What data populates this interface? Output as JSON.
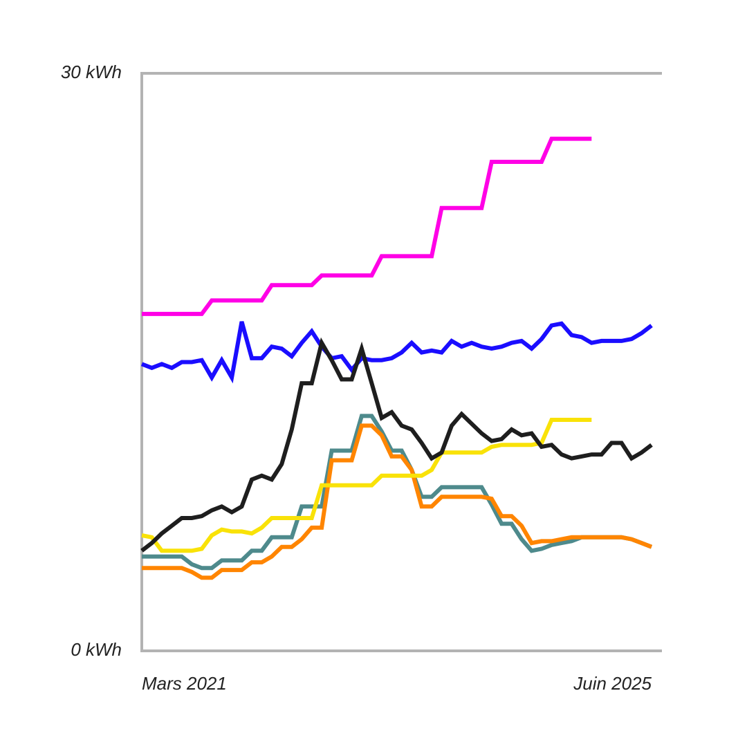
{
  "chart_data": {
    "type": "line",
    "categories": [
      "Mars 2021",
      null,
      null,
      null,
      null,
      null,
      null,
      null,
      null,
      null,
      null,
      null,
      null,
      null,
      null,
      null,
      null,
      null,
      null,
      null,
      null,
      null,
      null,
      null,
      null,
      null,
      null,
      null,
      null,
      null,
      null,
      null,
      null,
      null,
      null,
      null,
      null,
      null,
      null,
      null,
      null,
      null,
      null,
      null,
      null,
      null,
      null,
      null,
      null,
      null,
      null,
      "Juin 2025"
    ],
    "ylim": [
      0,
      30
    ],
    "yticks": [
      {
        "value": 0,
        "label": "0 kWh"
      },
      {
        "value": 30,
        "label": "30 kWh"
      }
    ],
    "grid": true,
    "series": [
      {
        "color": "#ff00e6",
        "values": [
          17.5,
          17.5,
          17.5,
          17.5,
          17.5,
          17.5,
          17.5,
          18.2,
          18.2,
          18.2,
          18.2,
          18.2,
          18.2,
          19.0,
          19.0,
          19.0,
          19.0,
          19.0,
          19.5,
          19.5,
          19.5,
          19.5,
          19.5,
          19.5,
          20.5,
          20.5,
          20.5,
          20.5,
          20.5,
          20.5,
          23.0,
          23.0,
          23.0,
          23.0,
          23.0,
          25.4,
          25.4,
          25.4,
          25.4,
          25.4,
          25.4,
          26.6,
          26.6,
          26.6,
          26.6,
          26.6,
          null,
          null,
          null,
          null,
          null,
          null
        ]
      },
      {
        "color": "#1a0dff",
        "values": [
          14.9,
          14.7,
          14.9,
          14.7,
          15.0,
          15.0,
          15.1,
          14.2,
          15.1,
          14.2,
          17.1,
          15.2,
          15.2,
          15.8,
          15.7,
          15.3,
          16.0,
          16.6,
          15.8,
          15.2,
          15.3,
          14.6,
          15.2,
          15.1,
          15.1,
          15.2,
          15.5,
          16.0,
          15.5,
          15.6,
          15.5,
          16.1,
          15.8,
          16.0,
          15.8,
          15.7,
          15.8,
          16.0,
          16.1,
          15.7,
          16.2,
          16.9,
          17.0,
          16.4,
          16.3,
          16.0,
          16.1,
          16.1,
          16.1,
          16.2,
          16.5,
          16.9
        ]
      },
      {
        "color": "#4e8a8c",
        "values": [
          4.9,
          4.9,
          4.9,
          4.9,
          4.9,
          4.5,
          4.3,
          4.3,
          4.7,
          4.7,
          4.7,
          5.2,
          5.2,
          5.9,
          5.9,
          5.9,
          7.5,
          7.5,
          7.5,
          10.4,
          10.4,
          10.4,
          12.2,
          12.2,
          11.4,
          10.4,
          10.4,
          9.4,
          8.0,
          8.0,
          8.5,
          8.5,
          8.5,
          8.5,
          8.5,
          7.6,
          6.6,
          6.6,
          5.8,
          5.2,
          5.3,
          5.5,
          5.6,
          5.7,
          5.9,
          5.9,
          5.9,
          5.9,
          5.9,
          5.8,
          5.6,
          5.4
        ]
      },
      {
        "color": "#ff8500",
        "values": [
          4.3,
          4.3,
          4.3,
          4.3,
          4.3,
          4.1,
          3.8,
          3.8,
          4.2,
          4.2,
          4.2,
          4.6,
          4.6,
          4.9,
          5.4,
          5.4,
          5.8,
          6.4,
          6.4,
          9.9,
          9.9,
          9.9,
          11.7,
          11.7,
          11.2,
          10.1,
          10.1,
          9.4,
          7.5,
          7.5,
          8.0,
          8.0,
          8.0,
          8.0,
          8.0,
          7.9,
          7.0,
          7.0,
          6.5,
          5.6,
          5.7,
          5.7,
          5.8,
          5.9,
          5.9,
          5.9,
          5.9,
          5.9,
          5.9,
          5.8,
          5.6,
          5.4
        ]
      },
      {
        "color": "#f9e208",
        "values": [
          6.0,
          5.9,
          5.2,
          5.2,
          5.2,
          5.2,
          5.3,
          6.0,
          6.3,
          6.2,
          6.2,
          6.1,
          6.4,
          6.9,
          6.9,
          6.9,
          6.9,
          6.9,
          8.6,
          8.6,
          8.6,
          8.6,
          8.6,
          8.6,
          9.1,
          9.1,
          9.1,
          9.1,
          9.1,
          9.4,
          10.3,
          10.3,
          10.3,
          10.3,
          10.3,
          10.6,
          10.7,
          10.7,
          10.7,
          10.7,
          10.8,
          12.0,
          12.0,
          12.0,
          12.0,
          12.0,
          null,
          null,
          null,
          null,
          null,
          null
        ]
      },
      {
        "color": "#1e1e1e",
        "values": [
          5.2,
          5.6,
          6.1,
          6.5,
          6.9,
          6.9,
          7.0,
          7.3,
          7.5,
          7.2,
          7.5,
          8.9,
          9.1,
          8.9,
          9.7,
          11.5,
          13.9,
          13.9,
          16.0,
          15.1,
          14.1,
          14.1,
          15.7,
          13.9,
          12.1,
          12.4,
          11.7,
          11.5,
          10.8,
          10.0,
          10.3,
          11.7,
          12.3,
          11.8,
          11.3,
          10.9,
          11.0,
          11.5,
          11.2,
          11.3,
          10.6,
          10.7,
          10.2,
          10.0,
          10.1,
          10.2,
          10.2,
          10.8,
          10.8,
          10.0,
          10.3,
          10.7
        ]
      }
    ]
  }
}
